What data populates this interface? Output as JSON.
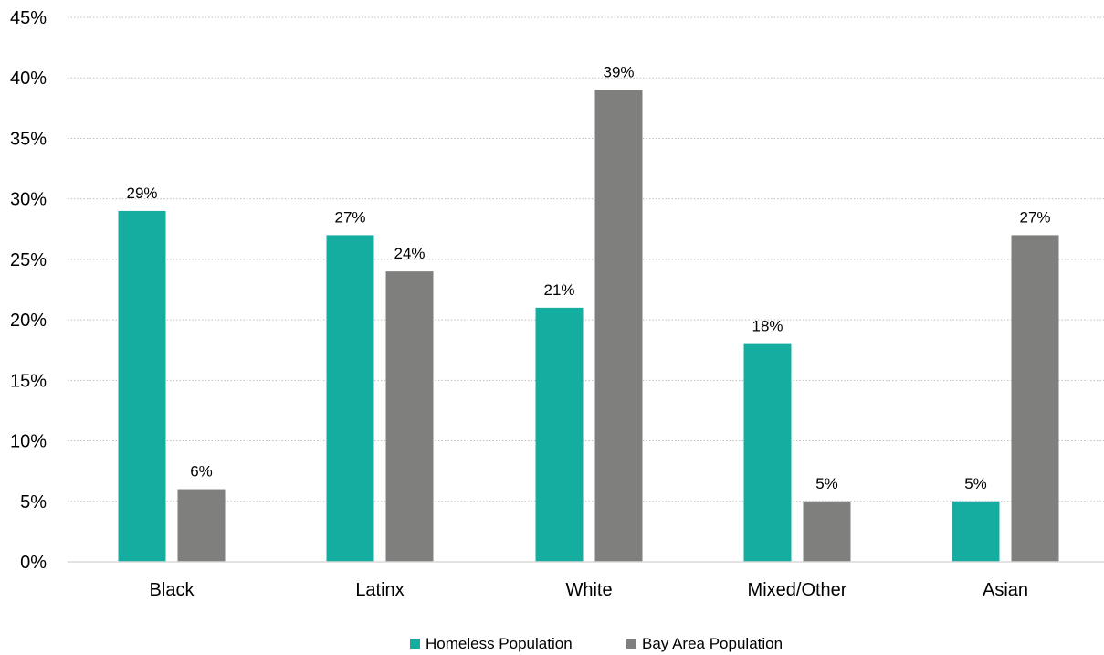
{
  "chart_data": {
    "type": "bar",
    "title": "",
    "xlabel": "",
    "ylabel": "",
    "categories": [
      "Black",
      "Latinx",
      "White",
      "Mixed/Other",
      "Asian"
    ],
    "series": [
      {
        "name": "Homeless Population",
        "values": [
          29,
          27,
          21,
          18,
          5
        ],
        "labels": [
          "29%",
          "27%",
          "21%",
          "18%",
          "5%"
        ],
        "color": "#14ADA0"
      },
      {
        "name": "Bay Area Population",
        "values": [
          6,
          24,
          39,
          5,
          27
        ],
        "labels": [
          "6%",
          "24%",
          "39%",
          "5%",
          "27%"
        ],
        "color": "#7F7F7E"
      }
    ],
    "ylim": [
      0,
      45
    ],
    "yticks": [
      0,
      5,
      10,
      15,
      20,
      25,
      30,
      35,
      40,
      45
    ],
    "ytick_labels": [
      "0%",
      "5%",
      "10%",
      "15%",
      "20%",
      "25%",
      "30%",
      "35%",
      "40%",
      "45%"
    ],
    "grid": true,
    "grid_style": "dotted",
    "legend_position": "bottom-center"
  }
}
